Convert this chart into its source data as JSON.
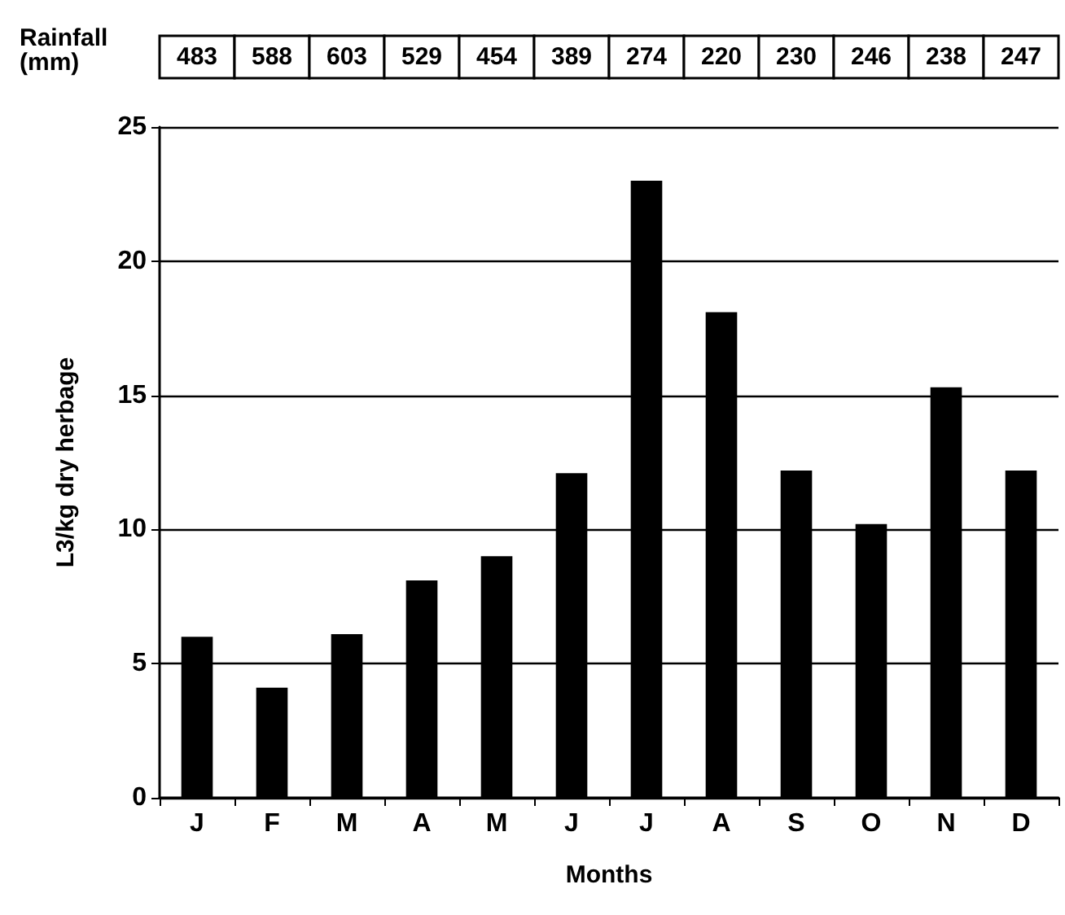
{
  "chart_data": {
    "type": "bar",
    "xlabel": "Months",
    "ylabel": "L3/kg dry herbage",
    "categories": [
      "J",
      "F",
      "M",
      "A",
      "M",
      "J",
      "J",
      "A",
      "S",
      "O",
      "N",
      "D"
    ],
    "values": [
      6,
      4.1,
      6.1,
      8.1,
      9,
      12.1,
      23,
      18.1,
      12.2,
      10.2,
      15.3,
      12.2
    ],
    "color": "#000000",
    "ylim": [
      0,
      25
    ],
    "yticks": [
      0,
      5,
      10,
      15,
      20,
      25
    ],
    "grid": "y",
    "annotations": [
      "Rainfall (mm)",
      "483",
      "588",
      "603",
      "529",
      "454",
      "389",
      "274",
      "220",
      "230",
      "246",
      "238",
      "247"
    ]
  }
}
